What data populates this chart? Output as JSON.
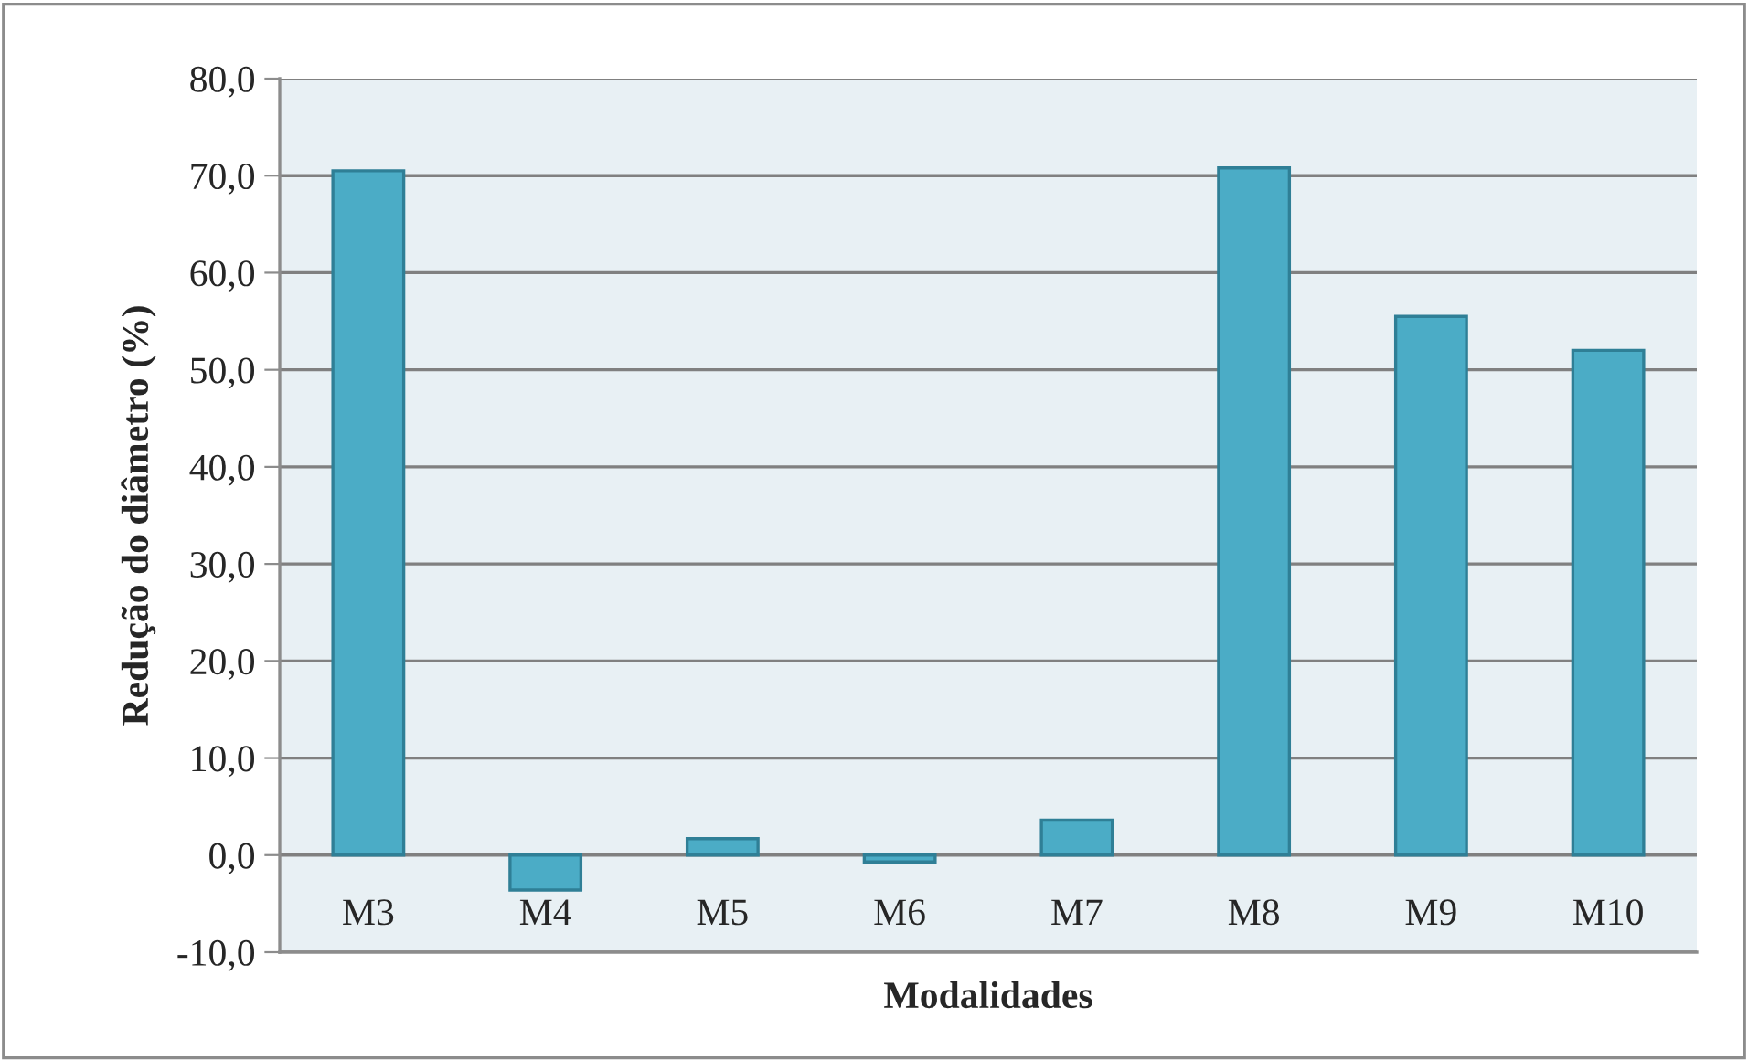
{
  "chart_data": {
    "type": "bar",
    "xlabel": "Modalidades",
    "ylabel": "Redução do diâmetro (%)",
    "categories": [
      "M3",
      "M4",
      "M5",
      "M6",
      "M7",
      "M8",
      "M9",
      "M10"
    ],
    "values": [
      70.5,
      -3.6,
      1.7,
      -0.7,
      3.6,
      70.8,
      55.5,
      52.0
    ],
    "color": "#4bacc6",
    "ylim": [
      -10,
      80
    ],
    "yticks": [
      {
        "value": -10,
        "label": "-10,0"
      },
      {
        "value": 0,
        "label": "0,0"
      },
      {
        "value": 10,
        "label": "10,0"
      },
      {
        "value": 20,
        "label": "20,0"
      },
      {
        "value": 30,
        "label": "30,0"
      },
      {
        "value": 40,
        "label": "40,0"
      },
      {
        "value": 50,
        "label": "50,0"
      },
      {
        "value": 60,
        "label": "60,0"
      },
      {
        "value": 70,
        "label": "70,0"
      },
      {
        "value": 80,
        "label": "80,0"
      }
    ],
    "grid": "y",
    "legend": false
  }
}
